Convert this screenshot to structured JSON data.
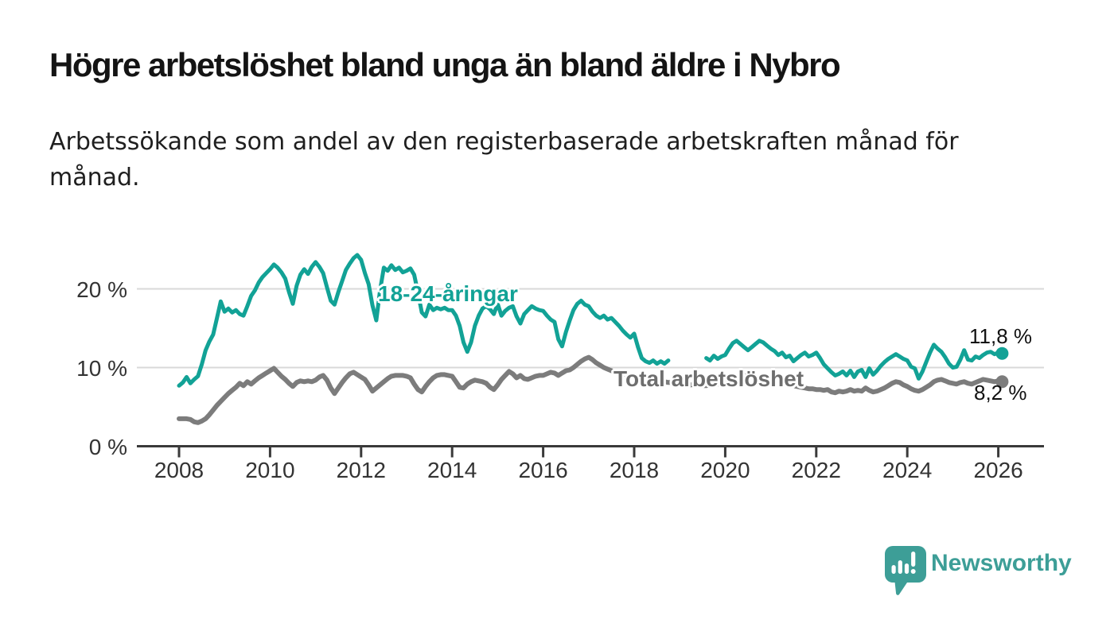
{
  "chart_data": {
    "type": "line",
    "title": "Högre arbetslöshet bland unga än bland äldre i Nybro",
    "subtitle_lines": [
      "Arbetssökande som andel av den registerbaserade arbetskraften månad för",
      "månad."
    ],
    "unit": "%",
    "frequency": "monthly",
    "x_start_year": 2008,
    "x_end_label": "2026",
    "x_tick_years": [
      2008,
      2010,
      2012,
      2014,
      2016,
      2018,
      2020,
      2022,
      2024,
      2026
    ],
    "y_ticks": [
      {
        "value": 20,
        "label": "20 %"
      },
      {
        "value": 10,
        "label": "10 %"
      },
      {
        "value": 0,
        "label": "0 %"
      }
    ],
    "grid_values": [
      10,
      20
    ],
    "ylim": [
      0,
      26
    ],
    "legend_position": "inline-labels",
    "series": [
      {
        "name": "18-24-åringar",
        "color": "#12a296",
        "end_label": "11,8 %",
        "end_value": 11.8,
        "values": [
          7.7,
          8.1,
          8.8,
          8.0,
          8.5,
          8.9,
          10.4,
          12.2,
          13.3,
          14.2,
          16.3,
          18.4,
          17.1,
          17.5,
          17.0,
          17.3,
          16.8,
          16.6,
          17.8,
          19.1,
          19.8,
          20.8,
          21.5,
          22.0,
          22.5,
          23.1,
          22.7,
          22.1,
          21.3,
          19.6,
          18.1,
          20.4,
          21.8,
          22.5,
          21.9,
          22.8,
          23.4,
          22.8,
          22.0,
          20.2,
          18.5,
          18.0,
          19.6,
          21.0,
          22.4,
          23.2,
          23.9,
          24.3,
          23.7,
          22.0,
          20.6,
          17.9,
          16.0,
          19.8,
          22.7,
          22.3,
          23.0,
          22.4,
          22.7,
          22.1,
          22.3,
          22.6,
          21.8,
          19.5,
          17.0,
          16.5,
          18.0,
          17.3,
          17.6,
          17.4,
          17.6,
          17.3,
          17.3,
          16.6,
          15.3,
          13.2,
          12.0,
          13.2,
          15.3,
          16.6,
          17.5,
          17.8,
          17.4,
          16.8,
          18.1,
          16.6,
          17.2,
          17.6,
          17.8,
          16.5,
          15.6,
          16.8,
          17.3,
          17.8,
          17.5,
          17.3,
          17.2,
          16.6,
          16.1,
          15.8,
          13.6,
          12.7,
          14.5,
          16.0,
          17.3,
          18.1,
          18.5,
          18.0,
          17.8,
          17.1,
          16.6,
          16.3,
          16.6,
          16.1,
          16.3,
          15.8,
          15.3,
          14.7,
          14.2,
          13.8,
          14.3,
          12.6,
          11.2,
          10.8,
          10.6,
          10.9,
          10.5,
          10.8,
          10.5,
          10.9,
          null,
          null,
          null,
          null,
          null,
          null,
          null,
          null,
          null,
          11.2,
          10.9,
          11.5,
          11.1,
          11.4,
          11.6,
          12.4,
          13.1,
          13.4,
          13.0,
          12.6,
          12.2,
          12.6,
          13.0,
          13.4,
          13.2,
          12.8,
          12.4,
          12.1,
          11.6,
          11.9,
          11.3,
          11.5,
          10.8,
          11.2,
          11.6,
          11.9,
          11.4,
          11.6,
          11.9,
          11.2,
          10.4,
          9.9,
          9.4,
          9.0,
          9.2,
          9.5,
          9.0,
          9.6,
          8.8,
          9.5,
          9.7,
          8.8,
          9.9,
          9.1,
          9.6,
          10.2,
          10.7,
          11.1,
          11.4,
          11.7,
          11.4,
          11.1,
          10.9,
          10.1,
          9.9,
          8.6,
          9.5,
          10.7,
          11.9,
          12.9,
          12.4,
          12.0,
          11.3,
          10.5,
          10.0,
          10.1,
          11.0,
          12.2,
          11.0,
          10.9,
          11.4,
          11.2,
          11.6,
          11.9,
          12.0,
          11.7,
          11.9,
          11.8
        ]
      },
      {
        "name": "Total arbetslöshet",
        "color": "#7c7c7c",
        "end_label": "8,2 %",
        "end_value": 8.2,
        "values": [
          3.5,
          3.5,
          3.5,
          3.4,
          3.1,
          3.0,
          3.2,
          3.5,
          4.0,
          4.6,
          5.2,
          5.7,
          6.2,
          6.7,
          7.1,
          7.5,
          8.0,
          7.7,
          8.2,
          7.9,
          8.3,
          8.7,
          9.0,
          9.3,
          9.6,
          9.9,
          9.4,
          8.9,
          8.5,
          8.0,
          7.6,
          8.1,
          8.3,
          8.2,
          8.3,
          8.2,
          8.4,
          8.8,
          9.0,
          8.4,
          7.4,
          6.7,
          7.4,
          8.1,
          8.7,
          9.2,
          9.4,
          9.1,
          8.8,
          8.5,
          7.8,
          7.0,
          7.4,
          7.8,
          8.2,
          8.6,
          8.9,
          9.0,
          9.0,
          9.0,
          8.9,
          8.7,
          7.9,
          7.2,
          6.9,
          7.6,
          8.2,
          8.7,
          9.0,
          9.1,
          9.1,
          9.0,
          8.9,
          8.2,
          7.5,
          7.4,
          7.9,
          8.2,
          8.4,
          8.3,
          8.2,
          8.0,
          7.5,
          7.2,
          7.8,
          8.5,
          9.0,
          9.5,
          9.2,
          8.7,
          9.0,
          8.6,
          8.5,
          8.7,
          8.9,
          9.0,
          9.0,
          9.2,
          9.4,
          9.3,
          9.0,
          9.3,
          9.6,
          9.7,
          10.0,
          10.4,
          10.8,
          11.1,
          11.3,
          11.0,
          10.6,
          10.3,
          10.0,
          9.8,
          9.6,
          9.4,
          9.3,
          9.2,
          9.1,
          9.0,
          8.9,
          8.8,
          8.7,
          8.6,
          8.5,
          8.4,
          8.3,
          8.2,
          8.2,
          8.1,
          8.1,
          8.0,
          8.0,
          7.9,
          7.9,
          7.8,
          7.8,
          7.8,
          7.7,
          7.7,
          7.8,
          7.8,
          7.9,
          8.0,
          8.1,
          8.2,
          8.4,
          8.7,
          8.9,
          9.0,
          8.9,
          8.8,
          8.7,
          8.6,
          8.5,
          8.4,
          8.3,
          8.2,
          8.1,
          8.0,
          7.9,
          7.8,
          7.7,
          7.6,
          7.5,
          7.4,
          7.3,
          7.3,
          7.2,
          7.2,
          7.1,
          7.2,
          6.9,
          6.8,
          7.0,
          6.9,
          7.0,
          7.2,
          7.0,
          7.1,
          7.0,
          7.4,
          7.1,
          6.9,
          7.0,
          7.2,
          7.4,
          7.7,
          8.0,
          8.2,
          8.1,
          7.8,
          7.6,
          7.3,
          7.1,
          7.0,
          7.2,
          7.5,
          7.8,
          8.2,
          8.4,
          8.5,
          8.3,
          8.1,
          8.0,
          7.9,
          8.1,
          8.2,
          8.0,
          7.9,
          8.1,
          8.3,
          8.5,
          8.4,
          8.3,
          8.2,
          8.3,
          8.2
        ]
      }
    ],
    "style": {
      "grid_color": "#d8d8d8",
      "axis_color": "#3a3a3a"
    }
  },
  "footer": {
    "brand": "Newsworthy",
    "logo_color": "#3d9e97"
  }
}
